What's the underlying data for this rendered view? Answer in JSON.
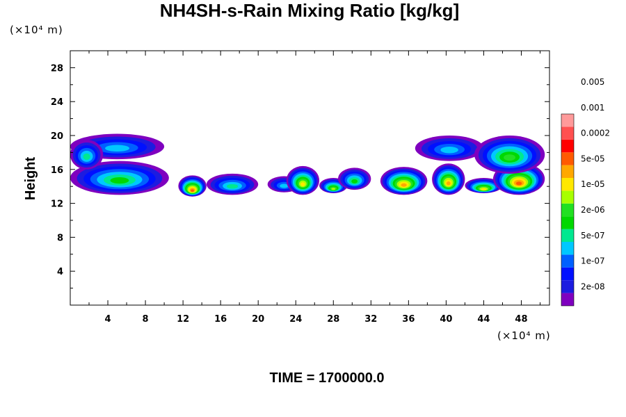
{
  "chart_data": {
    "type": "heatmap",
    "title": "NH4SH-s-Rain Mixing Ratio [kg/kg]",
    "xlabel": "",
    "ylabel": "Height",
    "x_unit_label": "(×10⁴ m)",
    "y_unit_label": "(×10⁴ m)",
    "xlim": [
      0,
      51
    ],
    "ylim": [
      0,
      30
    ],
    "x_ticks": [
      4,
      8,
      12,
      16,
      20,
      24,
      28,
      32,
      36,
      40,
      44,
      48
    ],
    "y_ticks": [
      4,
      8,
      12,
      16,
      20,
      24,
      28
    ],
    "grid": false,
    "legend_position": "right",
    "time_label": "TIME = 1700000.0",
    "colorbar": {
      "levels": [
        "2e-08",
        "1e-07",
        "5e-07",
        "2e-06",
        "1e-05",
        "5e-05",
        "0.0002",
        "0.001",
        "0.005"
      ],
      "colors": [
        "#7f00bf",
        "#1c1ce0",
        "#0010ff",
        "#0060ff",
        "#00c8ff",
        "#00e890",
        "#00d800",
        "#22e022",
        "#a8ff00",
        "#ffe800",
        "#ffa800",
        "#ff5a00",
        "#ff0000",
        "#ff5050",
        "#ff9a9a"
      ]
    },
    "regions": [
      {
        "x": [
          0,
          10
        ],
        "y": [
          17.2,
          20.2
        ],
        "peak": 4
      },
      {
        "x": [
          0,
          10.5
        ],
        "y": [
          13.0,
          17.0
        ],
        "peak": 6
      },
      {
        "x": [
          0,
          3.5
        ],
        "y": [
          16.0,
          19.5
        ],
        "peak": 5
      },
      {
        "x": [
          11.5,
          14.5
        ],
        "y": [
          12.8,
          15.3
        ],
        "peak": 11
      },
      {
        "x": [
          14.5,
          20.0
        ],
        "y": [
          13.0,
          15.5
        ],
        "peak": 5
      },
      {
        "x": [
          21.0,
          24.5
        ],
        "y": [
          13.3,
          15.2
        ],
        "peak": 4
      },
      {
        "x": [
          23.0,
          26.5
        ],
        "y": [
          13.0,
          16.4
        ],
        "peak": 9
      },
      {
        "x": [
          26.5,
          29.5
        ],
        "y": [
          13.2,
          15.0
        ],
        "peak": 8
      },
      {
        "x": [
          28.5,
          32.0
        ],
        "y": [
          13.6,
          16.2
        ],
        "peak": 6
      },
      {
        "x": [
          33.0,
          38.0
        ],
        "y": [
          13.0,
          16.3
        ],
        "peak": 10
      },
      {
        "x": [
          38.5,
          42.0
        ],
        "y": [
          13.0,
          16.7
        ],
        "peak": 10
      },
      {
        "x": [
          42.0,
          46.0
        ],
        "y": [
          13.2,
          15.0
        ],
        "peak": 9
      },
      {
        "x": [
          45.0,
          50.5
        ],
        "y": [
          13.0,
          16.8
        ],
        "peak": 11
      },
      {
        "x": [
          36.7,
          44.0
        ],
        "y": [
          17.0,
          20.0
        ],
        "peak": 4
      },
      {
        "x": [
          43.0,
          50.5
        ],
        "y": [
          15.5,
          20.0
        ],
        "peak": 7
      }
    ]
  }
}
